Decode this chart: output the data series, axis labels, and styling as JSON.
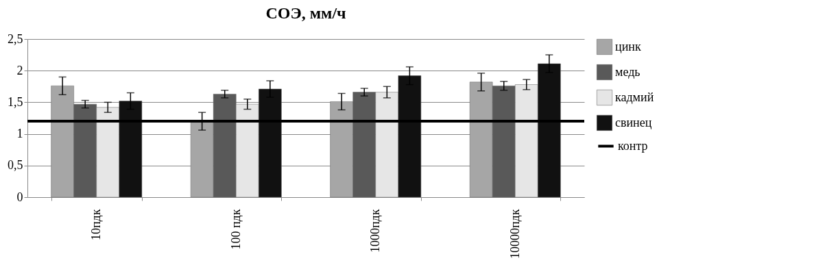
{
  "chart_data": {
    "type": "bar",
    "title": "СОЭ, мм/ч",
    "categories": [
      "10пдк",
      "100 пдк",
      "1000пдк",
      "10000пдк"
    ],
    "series": [
      {
        "name": "цинк",
        "color": "#a6a6a6",
        "values": [
          1.76,
          1.2,
          1.51,
          1.82
        ],
        "errors": [
          0.14,
          0.14,
          0.13,
          0.14
        ]
      },
      {
        "name": "медь",
        "color": "#595959",
        "values": [
          1.47,
          1.63,
          1.66,
          1.76
        ],
        "errors": [
          0.06,
          0.06,
          0.06,
          0.07
        ]
      },
      {
        "name": "кадмий",
        "color": "#e6e6e6",
        "values": [
          1.42,
          1.47,
          1.66,
          1.78
        ],
        "errors": [
          0.08,
          0.08,
          0.09,
          0.08
        ]
      },
      {
        "name": "свинец",
        "color": "#111111",
        "values": [
          1.52,
          1.71,
          1.92,
          2.11
        ],
        "errors": [
          0.13,
          0.13,
          0.14,
          0.14
        ]
      }
    ],
    "ref_lines": [
      {
        "axis": "y",
        "value": 1.2,
        "label": "контр",
        "color": "#000000"
      }
    ],
    "ylim": [
      0,
      2.5
    ],
    "yticks": [
      0,
      {
        "value": 0.5,
        "label": "0,5"
      },
      1,
      {
        "value": 1.5,
        "label": "1,5"
      },
      2,
      {
        "value": 2.5,
        "label": "2,5"
      }
    ],
    "grid": "y",
    "legend": "right"
  }
}
